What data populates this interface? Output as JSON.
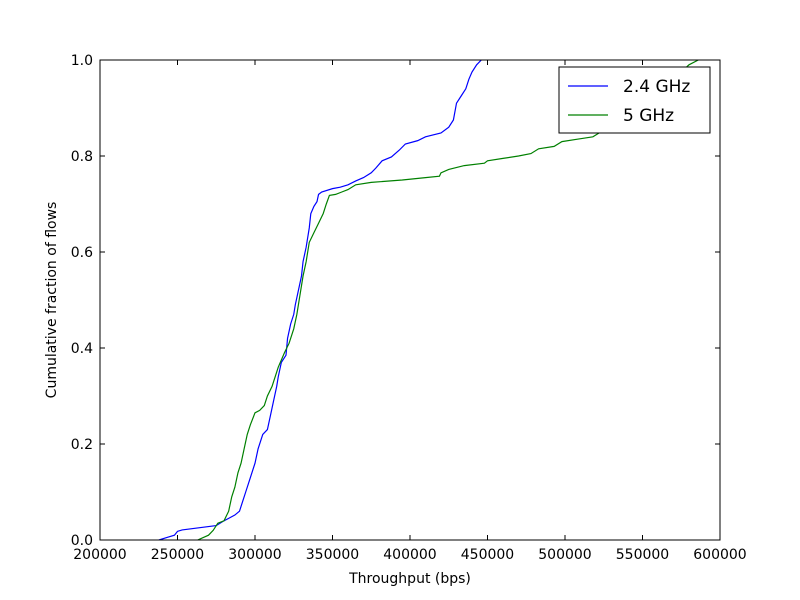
{
  "chart_data": {
    "type": "line",
    "title": "",
    "xlabel": "Throughput (bps)",
    "ylabel": "Cumulative fraction of flows",
    "xlim": [
      200000,
      600000
    ],
    "ylim": [
      0.0,
      1.0
    ],
    "x_ticks": [
      200000,
      250000,
      300000,
      350000,
      400000,
      450000,
      500000,
      550000,
      600000
    ],
    "x_tick_labels": [
      "200000",
      "250000",
      "300000",
      "350000",
      "400000",
      "450000",
      "500000",
      "550000",
      "600000"
    ],
    "y_ticks": [
      0.0,
      0.2,
      0.4,
      0.6,
      0.8,
      1.0
    ],
    "y_tick_labels": [
      "0.0",
      "0.2",
      "0.4",
      "0.6",
      "0.8",
      "1.0"
    ],
    "grid": false,
    "legend_position": "top-right",
    "series": [
      {
        "name": "2.4 GHz",
        "color": "#0000ff",
        "points": [
          [
            238000,
            0.0
          ],
          [
            243000,
            0.005
          ],
          [
            248000,
            0.01
          ],
          [
            250000,
            0.018
          ],
          [
            253000,
            0.021
          ],
          [
            275000,
            0.03
          ],
          [
            280000,
            0.04
          ],
          [
            283000,
            0.045
          ],
          [
            287000,
            0.052
          ],
          [
            290000,
            0.06
          ],
          [
            292000,
            0.08
          ],
          [
            294000,
            0.1
          ],
          [
            296000,
            0.12
          ],
          [
            298000,
            0.14
          ],
          [
            300000,
            0.16
          ],
          [
            302000,
            0.19
          ],
          [
            305000,
            0.22
          ],
          [
            308000,
            0.23
          ],
          [
            310000,
            0.26
          ],
          [
            312000,
            0.29
          ],
          [
            314000,
            0.32
          ],
          [
            315000,
            0.34
          ],
          [
            317000,
            0.37
          ],
          [
            320000,
            0.385
          ],
          [
            321000,
            0.42
          ],
          [
            323000,
            0.45
          ],
          [
            325000,
            0.47
          ],
          [
            326000,
            0.49
          ],
          [
            328000,
            0.52
          ],
          [
            330000,
            0.55
          ],
          [
            331000,
            0.58
          ],
          [
            333000,
            0.61
          ],
          [
            335000,
            0.65
          ],
          [
            336000,
            0.68
          ],
          [
            338000,
            0.695
          ],
          [
            340000,
            0.705
          ],
          [
            341000,
            0.72
          ],
          [
            343000,
            0.725
          ],
          [
            350000,
            0.732
          ],
          [
            355000,
            0.735
          ],
          [
            360000,
            0.74
          ],
          [
            365000,
            0.748
          ],
          [
            370000,
            0.755
          ],
          [
            375000,
            0.765
          ],
          [
            378000,
            0.775
          ],
          [
            382000,
            0.79
          ],
          [
            388000,
            0.798
          ],
          [
            393000,
            0.812
          ],
          [
            397000,
            0.825
          ],
          [
            405000,
            0.832
          ],
          [
            410000,
            0.84
          ],
          [
            420000,
            0.848
          ],
          [
            425000,
            0.86
          ],
          [
            428000,
            0.875
          ],
          [
            430000,
            0.91
          ],
          [
            433000,
            0.925
          ],
          [
            436000,
            0.94
          ],
          [
            438000,
            0.96
          ],
          [
            440000,
            0.975
          ],
          [
            443000,
            0.99
          ],
          [
            446000,
            1.0
          ]
        ]
      },
      {
        "name": "5 GHz",
        "color": "#008000",
        "points": [
          [
            263000,
            0.0
          ],
          [
            270000,
            0.01
          ],
          [
            273000,
            0.02
          ],
          [
            276000,
            0.035
          ],
          [
            280000,
            0.04
          ],
          [
            283000,
            0.06
          ],
          [
            285000,
            0.09
          ],
          [
            287000,
            0.11
          ],
          [
            289000,
            0.14
          ],
          [
            291000,
            0.16
          ],
          [
            293000,
            0.19
          ],
          [
            295000,
            0.22
          ],
          [
            297000,
            0.24
          ],
          [
            300000,
            0.265
          ],
          [
            303000,
            0.27
          ],
          [
            306000,
            0.28
          ],
          [
            308000,
            0.3
          ],
          [
            311000,
            0.32
          ],
          [
            313000,
            0.34
          ],
          [
            315000,
            0.36
          ],
          [
            317000,
            0.375
          ],
          [
            319000,
            0.39
          ],
          [
            322000,
            0.41
          ],
          [
            325000,
            0.44
          ],
          [
            327000,
            0.47
          ],
          [
            329000,
            0.51
          ],
          [
            331000,
            0.55
          ],
          [
            333000,
            0.58
          ],
          [
            335000,
            0.62
          ],
          [
            338000,
            0.64
          ],
          [
            341000,
            0.66
          ],
          [
            344000,
            0.68
          ],
          [
            346000,
            0.7
          ],
          [
            348000,
            0.718
          ],
          [
            352000,
            0.72
          ],
          [
            356000,
            0.725
          ],
          [
            360000,
            0.73
          ],
          [
            365000,
            0.74
          ],
          [
            375000,
            0.745
          ],
          [
            395000,
            0.75
          ],
          [
            410000,
            0.755
          ],
          [
            419000,
            0.758
          ],
          [
            420000,
            0.765
          ],
          [
            425000,
            0.772
          ],
          [
            435000,
            0.78
          ],
          [
            448000,
            0.785
          ],
          [
            450000,
            0.79
          ],
          [
            460000,
            0.795
          ],
          [
            470000,
            0.8
          ],
          [
            478000,
            0.805
          ],
          [
            483000,
            0.815
          ],
          [
            493000,
            0.82
          ],
          [
            498000,
            0.83
          ],
          [
            508000,
            0.835
          ],
          [
            518000,
            0.84
          ],
          [
            523000,
            0.85
          ],
          [
            530000,
            0.86
          ],
          [
            545000,
            0.87
          ],
          [
            558000,
            0.882
          ],
          [
            565000,
            0.9
          ],
          [
            570000,
            0.935
          ],
          [
            575000,
            0.975
          ],
          [
            580000,
            0.99
          ],
          [
            586000,
            1.0
          ]
        ]
      }
    ]
  }
}
